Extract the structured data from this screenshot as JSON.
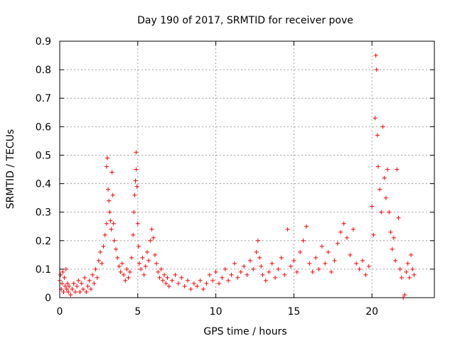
{
  "chart_data": {
    "type": "scatter",
    "title": "Day 190 of 2017, SRMTID for receiver pove",
    "xlabel": "GPS time / hours",
    "ylabel": "SRMTID / TECUs",
    "xlim": [
      0,
      24
    ],
    "ylim": [
      0,
      0.9
    ],
    "xticks": [
      0,
      5,
      10,
      15,
      20
    ],
    "yticks": [
      0,
      0.1,
      0.2,
      0.3,
      0.4,
      0.5,
      0.6,
      0.7,
      0.8,
      0.9
    ],
    "grid": true,
    "legend": "none",
    "marker": "plus",
    "color": "#ff0000",
    "series": [
      {
        "values": [
          [
            0.0,
            0.06
          ],
          [
            0.05,
            0.08
          ],
          [
            0.1,
            0.03
          ],
          [
            0.15,
            0.05
          ],
          [
            0.2,
            0.09
          ],
          [
            0.25,
            0.02
          ],
          [
            0.3,
            0.07
          ],
          [
            0.35,
            0.04
          ],
          [
            0.4,
            0.1
          ],
          [
            0.45,
            0.03
          ],
          [
            0.5,
            0.05
          ],
          [
            0.55,
            0.02
          ],
          [
            0.6,
            0.04
          ],
          [
            0.7,
            0.01
          ],
          [
            0.8,
            0.03
          ],
          [
            0.9,
            0.05
          ],
          [
            1.0,
            0.02
          ],
          [
            1.1,
            0.04
          ],
          [
            1.2,
            0.06
          ],
          [
            1.3,
            0.02
          ],
          [
            1.4,
            0.05
          ],
          [
            1.5,
            0.03
          ],
          [
            1.6,
            0.07
          ],
          [
            1.7,
            0.02
          ],
          [
            1.8,
            0.04
          ],
          [
            1.9,
            0.06
          ],
          [
            2.0,
            0.03
          ],
          [
            2.1,
            0.08
          ],
          [
            2.2,
            0.05
          ],
          [
            2.3,
            0.1
          ],
          [
            2.4,
            0.07
          ],
          [
            2.5,
            0.13
          ],
          [
            2.6,
            0.16
          ],
          [
            2.7,
            0.12
          ],
          [
            2.8,
            0.18
          ],
          [
            2.9,
            0.22
          ],
          [
            3.0,
            0.26
          ],
          [
            3.0,
            0.46
          ],
          [
            3.05,
            0.49
          ],
          [
            3.1,
            0.38
          ],
          [
            3.15,
            0.34
          ],
          [
            3.2,
            0.3
          ],
          [
            3.25,
            0.27
          ],
          [
            3.3,
            0.24
          ],
          [
            3.35,
            0.44
          ],
          [
            3.4,
            0.36
          ],
          [
            3.45,
            0.26
          ],
          [
            3.5,
            0.2
          ],
          [
            3.6,
            0.17
          ],
          [
            3.7,
            0.14
          ],
          [
            3.8,
            0.11
          ],
          [
            3.9,
            0.09
          ],
          [
            4.0,
            0.12
          ],
          [
            4.1,
            0.08
          ],
          [
            4.2,
            0.06
          ],
          [
            4.3,
            0.1
          ],
          [
            4.4,
            0.07
          ],
          [
            4.5,
            0.09
          ],
          [
            4.6,
            0.14
          ],
          [
            4.7,
            0.22
          ],
          [
            4.75,
            0.3
          ],
          [
            4.8,
            0.36
          ],
          [
            4.85,
            0.41
          ],
          [
            4.9,
            0.45
          ],
          [
            4.9,
            0.51
          ],
          [
            4.95,
            0.39
          ],
          [
            5.0,
            0.26
          ],
          [
            5.05,
            0.18
          ],
          [
            5.1,
            0.12
          ],
          [
            5.2,
            0.1
          ],
          [
            5.3,
            0.14
          ],
          [
            5.4,
            0.08
          ],
          [
            5.5,
            0.11
          ],
          [
            5.6,
            0.16
          ],
          [
            5.7,
            0.13
          ],
          [
            5.8,
            0.2
          ],
          [
            5.9,
            0.24
          ],
          [
            6.0,
            0.21
          ],
          [
            6.1,
            0.15
          ],
          [
            6.2,
            0.12
          ],
          [
            6.3,
            0.09
          ],
          [
            6.4,
            0.07
          ],
          [
            6.5,
            0.1
          ],
          [
            6.6,
            0.06
          ],
          [
            6.7,
            0.08
          ],
          [
            6.8,
            0.05
          ],
          [
            6.9,
            0.07
          ],
          [
            7.0,
            0.04
          ],
          [
            7.2,
            0.06
          ],
          [
            7.4,
            0.08
          ],
          [
            7.6,
            0.05
          ],
          [
            7.8,
            0.07
          ],
          [
            8.0,
            0.04
          ],
          [
            8.2,
            0.06
          ],
          [
            8.4,
            0.03
          ],
          [
            8.6,
            0.05
          ],
          [
            8.8,
            0.04
          ],
          [
            9.0,
            0.06
          ],
          [
            9.2,
            0.03
          ],
          [
            9.4,
            0.05
          ],
          [
            9.6,
            0.08
          ],
          [
            9.8,
            0.06
          ],
          [
            10.0,
            0.09
          ],
          [
            10.2,
            0.05
          ],
          [
            10.4,
            0.07
          ],
          [
            10.6,
            0.1
          ],
          [
            10.8,
            0.06
          ],
          [
            11.0,
            0.08
          ],
          [
            11.2,
            0.12
          ],
          [
            11.4,
            0.07
          ],
          [
            11.6,
            0.09
          ],
          [
            11.8,
            0.11
          ],
          [
            12.0,
            0.08
          ],
          [
            12.2,
            0.13
          ],
          [
            12.4,
            0.1
          ],
          [
            12.6,
            0.16
          ],
          [
            12.7,
            0.2
          ],
          [
            12.8,
            0.14
          ],
          [
            12.9,
            0.11
          ],
          [
            13.0,
            0.08
          ],
          [
            13.2,
            0.06
          ],
          [
            13.4,
            0.09
          ],
          [
            13.6,
            0.12
          ],
          [
            13.8,
            0.07
          ],
          [
            14.0,
            0.1
          ],
          [
            14.2,
            0.14
          ],
          [
            14.4,
            0.08
          ],
          [
            14.6,
            0.24
          ],
          [
            14.8,
            0.11
          ],
          [
            15.0,
            0.13
          ],
          [
            15.2,
            0.09
          ],
          [
            15.4,
            0.16
          ],
          [
            15.6,
            0.2
          ],
          [
            15.8,
            0.25
          ],
          [
            16.0,
            0.12
          ],
          [
            16.2,
            0.09
          ],
          [
            16.4,
            0.14
          ],
          [
            16.6,
            0.1
          ],
          [
            16.8,
            0.18
          ],
          [
            17.0,
            0.12
          ],
          [
            17.2,
            0.16
          ],
          [
            17.4,
            0.09
          ],
          [
            17.6,
            0.13
          ],
          [
            17.8,
            0.19
          ],
          [
            18.0,
            0.23
          ],
          [
            18.2,
            0.26
          ],
          [
            18.4,
            0.21
          ],
          [
            18.6,
            0.15
          ],
          [
            18.8,
            0.24
          ],
          [
            19.0,
            0.12
          ],
          [
            19.2,
            0.1
          ],
          [
            19.4,
            0.13
          ],
          [
            19.6,
            0.08
          ],
          [
            19.8,
            0.11
          ],
          [
            20.0,
            0.32
          ],
          [
            20.1,
            0.22
          ],
          [
            20.2,
            0.63
          ],
          [
            20.25,
            0.85
          ],
          [
            20.3,
            0.8
          ],
          [
            20.35,
            0.57
          ],
          [
            20.4,
            0.46
          ],
          [
            20.5,
            0.38
          ],
          [
            20.6,
            0.3
          ],
          [
            20.7,
            0.6
          ],
          [
            20.8,
            0.42
          ],
          [
            20.9,
            0.35
          ],
          [
            21.0,
            0.45
          ],
          [
            21.1,
            0.3
          ],
          [
            21.2,
            0.23
          ],
          [
            21.3,
            0.17
          ],
          [
            21.4,
            0.21
          ],
          [
            21.5,
            0.13
          ],
          [
            21.6,
            0.45
          ],
          [
            21.7,
            0.28
          ],
          [
            21.8,
            0.1
          ],
          [
            21.9,
            0.07
          ],
          [
            22.0,
            0.0
          ],
          [
            22.1,
            0.01
          ],
          [
            22.2,
            0.09
          ],
          [
            22.3,
            0.12
          ],
          [
            22.4,
            0.07
          ],
          [
            22.5,
            0.15
          ],
          [
            22.6,
            0.1
          ],
          [
            22.7,
            0.08
          ]
        ]
      }
    ]
  }
}
